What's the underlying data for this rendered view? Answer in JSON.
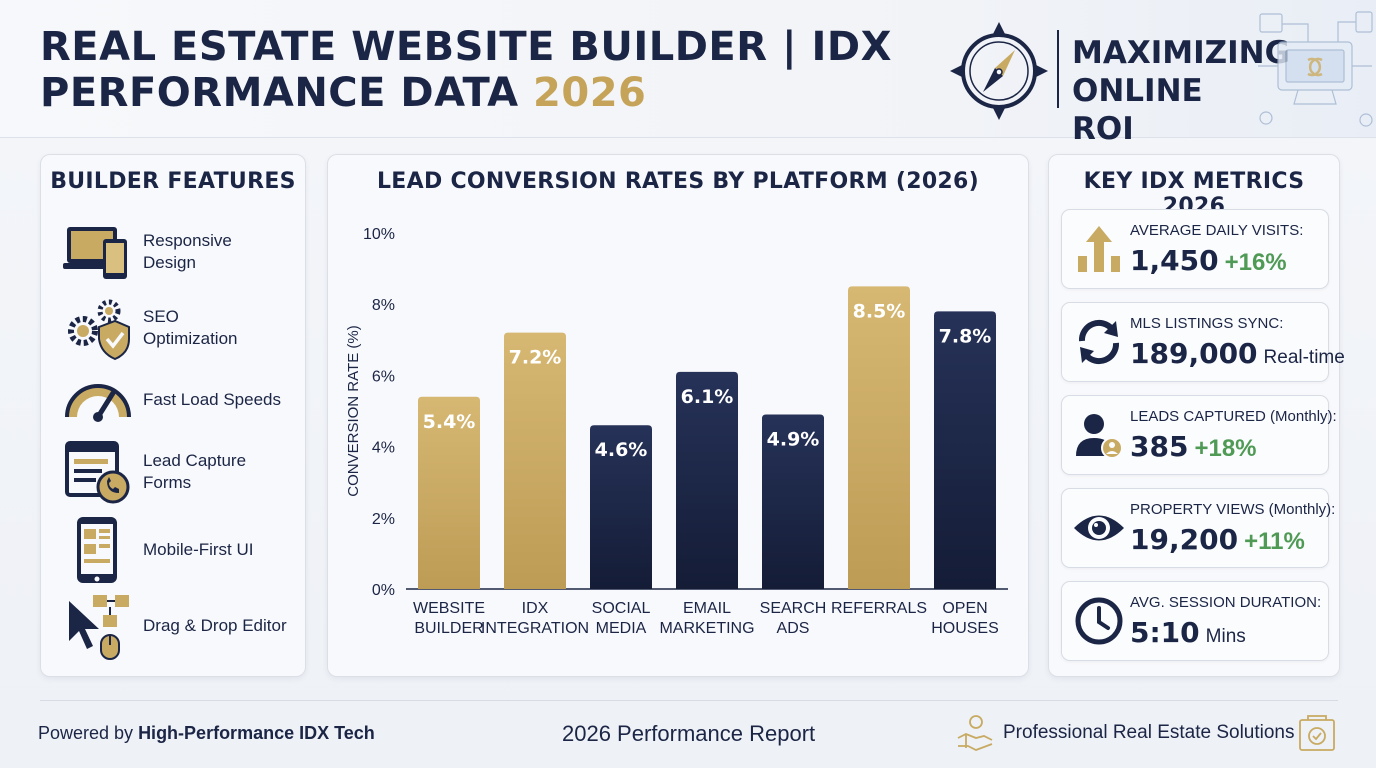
{
  "header": {
    "title_line1": "REAL ESTATE WEBSITE BUILDER | IDX",
    "title_line2": "PERFORMANCE DATA",
    "title_year": "2026",
    "brand_line1": "MAXIMIZING",
    "brand_line2": "ONLINE ROI"
  },
  "features": {
    "title": "BUILDER FEATURES",
    "items": [
      {
        "label_line1": "Responsive",
        "label_line2": "Design",
        "icon": "devices-icon"
      },
      {
        "label_line1": "SEO",
        "label_line2": "Optimization",
        "icon": "gears-shield-icon"
      },
      {
        "label_line1": "Fast Load Speeds",
        "label_line2": "",
        "icon": "speedometer-icon"
      },
      {
        "label_line1": "Lead Capture Forms",
        "label_line2": "",
        "icon": "form-phone-icon"
      },
      {
        "label_line1": "Mobile-First UI",
        "label_line2": "",
        "icon": "smartphone-icon"
      },
      {
        "label_line1": "Drag & Drop Editor",
        "label_line2": "",
        "icon": "cursor-drag-icon"
      }
    ]
  },
  "chart_data": {
    "type": "bar",
    "title": "LEAD CONVERSION RATES BY PLATFORM (2026)",
    "ylabel": "CONVERSION RATE (%)",
    "xlabel": "",
    "ylim": [
      0,
      10
    ],
    "yticks": [
      "0%",
      "2%",
      "4%",
      "6%",
      "8%",
      "10%"
    ],
    "categories": [
      [
        "WEBSITE",
        "BUILDER"
      ],
      [
        "IDX",
        "INTEGRATION"
      ],
      [
        "SOCIAL",
        "MEDIA"
      ],
      [
        "EMAIL",
        "MARKETING"
      ],
      [
        "SEARCH",
        "ADS"
      ],
      [
        "REFERRALS"
      ],
      [
        "OPEN",
        "HOUSES"
      ]
    ],
    "values": [
      5.4,
      7.2,
      4.6,
      6.1,
      4.9,
      8.5,
      7.8
    ],
    "value_labels": [
      "5.4%",
      "7.2%",
      "4.6%",
      "6.1%",
      "4.9%",
      "8.5%",
      "7.8%"
    ],
    "bar_colors": [
      "gold",
      "gold",
      "navy",
      "navy",
      "navy",
      "gold",
      "navy"
    ],
    "grid": false,
    "legend": "none"
  },
  "metrics": {
    "title": "KEY IDX METRICS 2026",
    "items": [
      {
        "label": "AVERAGE DAILY VISITS:",
        "value": "1,450",
        "delta": "+16%",
        "suffix": "",
        "icon": "growth-arrow-icon"
      },
      {
        "label": "MLS LISTINGS SYNC:",
        "value": "189,000",
        "delta": "",
        "suffix": "Real-time",
        "icon": "sync-icon"
      },
      {
        "label": "LEADS CAPTURED (Monthly):",
        "value": "385",
        "delta": "+18%",
        "suffix": "",
        "icon": "user-lead-icon"
      },
      {
        "label": "PROPERTY VIEWS (Monthly):",
        "value": "19,200",
        "delta": "+11%",
        "suffix": "",
        "icon": "eye-icon"
      },
      {
        "label": "AVG. SESSION DURATION:",
        "value": "5:10",
        "delta": "",
        "suffix": "Mins",
        "icon": "clock-icon"
      }
    ]
  },
  "footer": {
    "left_prefix": "Powered by ",
    "left_bold": "High-Performance IDX Tech",
    "center": "2026 Performance Report",
    "right": "Professional Real Estate Solutions"
  },
  "colors": {
    "navy": "#1b2545",
    "gold": "#c8aa62",
    "green": "#4f9a55",
    "background": "#f1f3f7"
  }
}
